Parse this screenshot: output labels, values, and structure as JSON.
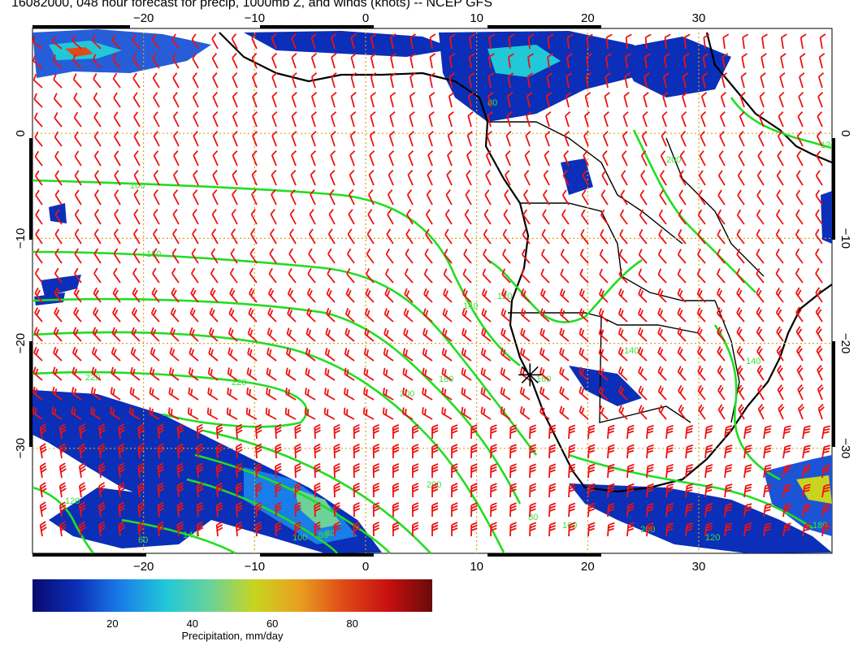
{
  "title": "16082000, 048 hour forecast for precip, 1000mb Z, and winds (knots) -- NCEP GFS",
  "map": {
    "lon_range": [
      -30,
      42
    ],
    "lat_range": [
      -40,
      10
    ],
    "lon_ticks": [
      -20,
      -10,
      0,
      10,
      20,
      30
    ],
    "lon_tick_labels": [
      "−20",
      "−10",
      "0",
      "10",
      "20",
      "30"
    ],
    "lat_ticks": [
      0,
      -10,
      -20,
      -30
    ],
    "lat_tick_labels": [
      "0",
      "−10",
      "−20",
      "−30"
    ],
    "gridlines": "dotted-orange",
    "marker": {
      "type": "star",
      "lon": 14.8,
      "lat": -23.0
    },
    "contour_labels": [
      "100",
      "160",
      "220",
      "220",
      "180",
      "200",
      "160",
      "140",
      "120",
      "120",
      "80",
      "140",
      "140",
      "200",
      "200",
      "160",
      "80",
      "100",
      "80",
      "120",
      "140",
      "80",
      "60",
      "120",
      "180",
      "200"
    ],
    "colors": {
      "contour": "#22dd22",
      "wind_barbs": "#ee1111",
      "coastline": "#000000",
      "grid": "#e0a020"
    }
  },
  "colorbar": {
    "title": "Precipitation, mm/day",
    "tick_values": [
      20,
      40,
      60,
      80
    ],
    "tick_labels": [
      "20",
      "40",
      "60",
      "80"
    ],
    "range": [
      0,
      100
    ],
    "colormap": [
      "#0a0a6e",
      "#0b2fb8",
      "#1a7ee8",
      "#20c8d8",
      "#6ad29a",
      "#c8d420",
      "#e8a020",
      "#e04a18",
      "#c81010",
      "#6a0a0a"
    ]
  }
}
